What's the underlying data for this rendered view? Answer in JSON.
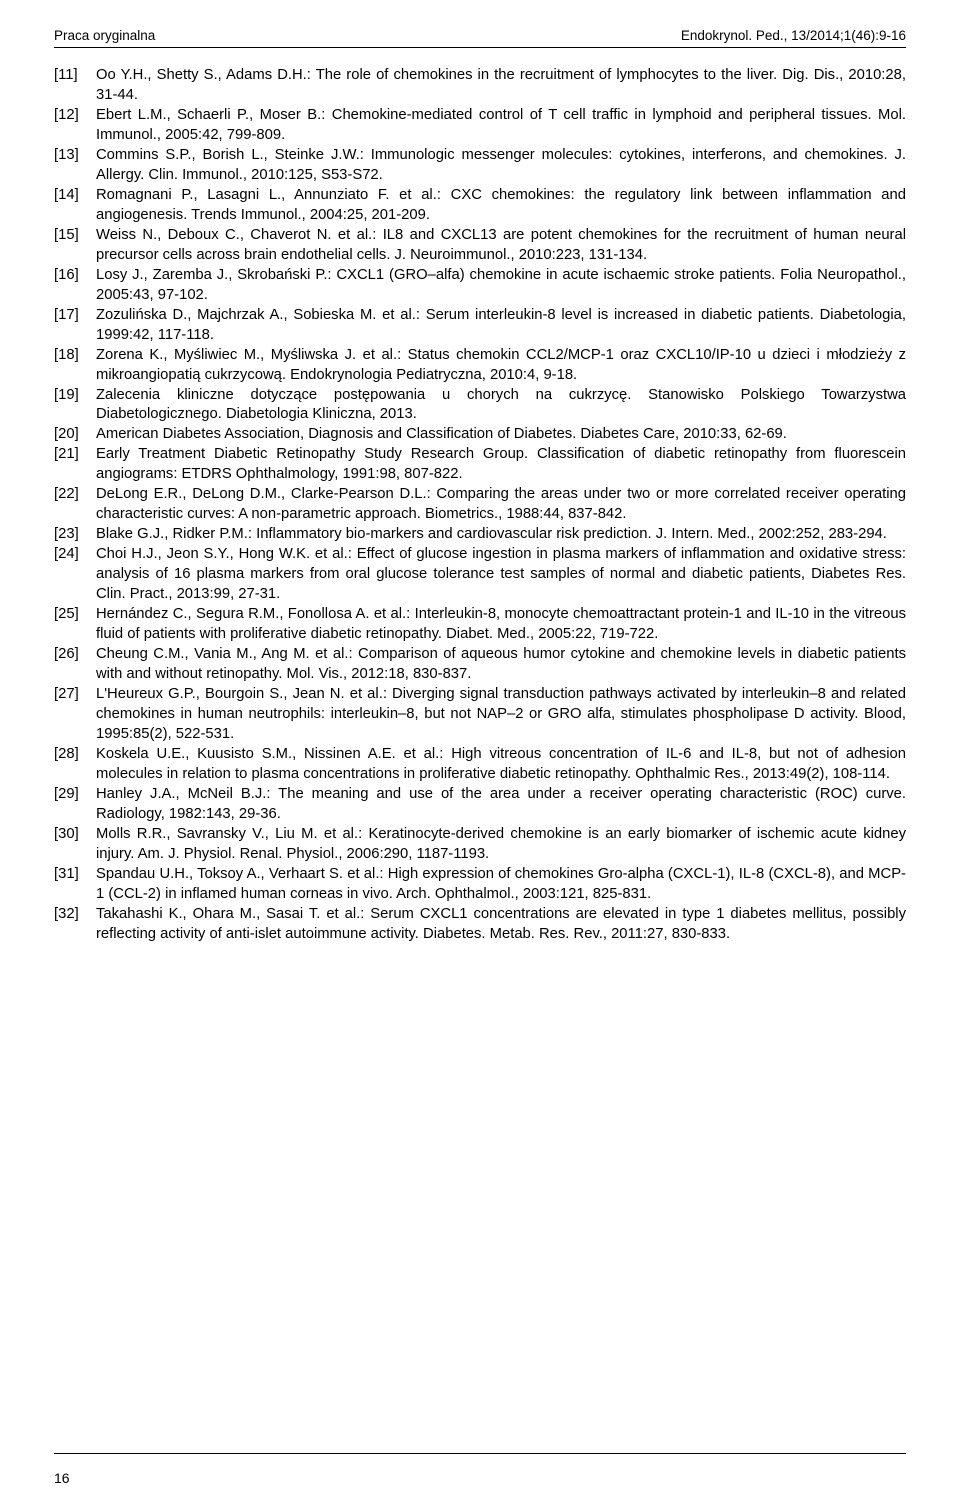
{
  "header": {
    "left": "Praca oryginalna",
    "right": "Endokrynol. Ped., 13/2014;1(46):9-16"
  },
  "pageNumber": "16",
  "references": [
    {
      "num": "[11]",
      "text": "Oo Y.H., Shetty S., Adams D.H.: The role of chemokines in the recruitment of lymphocytes to the liver. Dig. Dis., 2010:28, 31-44."
    },
    {
      "num": "[12]",
      "text": "Ebert L.M., Schaerli P., Moser B.: Chemokine-mediated control of T cell traffic in lymphoid and peripheral tissues. Mol. Immunol., 2005:42, 799-809."
    },
    {
      "num": "[13]",
      "text": "Commins S.P., Borish L., Steinke J.W.: Immunologic messenger molecules: cytokines, interferons, and chemokines. J. Allergy. Clin. Immunol., 2010:125, S53-S72."
    },
    {
      "num": "[14]",
      "text": "Romagnani P., Lasagni L., Annunziato F. et al.: CXC chemokines: the regulatory link between inflammation and angiogenesis. Trends Immunol., 2004:25, 201-209."
    },
    {
      "num": "[15]",
      "text": "Weiss N., Deboux C., Chaverot N. et al.: IL8 and CXCL13 are potent chemokines for the recruitment of human neural precursor cells across brain endothelial cells. J. Neuroimmunol., 2010:223, 131-134."
    },
    {
      "num": "[16]",
      "text": "Losy J., Zaremba J., Skrobański P.: CXCL1 (GRO–alfa) chemokine in acute ischaemic stroke patients. Folia Neuropathol., 2005:43, 97-102."
    },
    {
      "num": "[17]",
      "text": "Zozulińska D., Majchrzak A., Sobieska M. et al.: Serum interleukin-8 level is increased in diabetic patients. Diabetologia, 1999:42, 117-118."
    },
    {
      "num": "[18]",
      "text": "Zorena K., Myśliwiec M., Myśliwska J. et al.: Status chemokin CCL2/MCP-1 oraz CXCL10/IP-10 u dzieci i młodzieży z mikroangiopatią cukrzycową. Endokrynologia Pediatryczna, 2010:4, 9-18."
    },
    {
      "num": "[19]",
      "text": "Zalecenia kliniczne dotyczące postępowania u chorych na cukrzycę. Stanowisko Polskiego Towarzystwa Diabetologicznego. Diabetologia Kliniczna, 2013."
    },
    {
      "num": "[20]",
      "text": "American Diabetes Association, Diagnosis and Classification of Diabetes. Diabetes Care, 2010:33, 62-69."
    },
    {
      "num": "[21]",
      "text": "Early Treatment Diabetic Retinopathy Study Research Group. Classification of diabetic retinopathy from fluorescein angiograms: ETDRS Ophthalmology, 1991:98, 807-822."
    },
    {
      "num": "[22]",
      "text": "DeLong E.R., DeLong D.M., Clarke-Pearson D.L.: Comparing the areas under two or more correlated receiver operating characteristic curves: A non-parametric approach. Biometrics., 1988:44, 837-842."
    },
    {
      "num": "[23]",
      "text": "Blake G.J., Ridker P.M.: Inflammatory bio-markers and cardiovascular risk prediction. J. Intern. Med., 2002:252, 283-294."
    },
    {
      "num": "[24]",
      "text": "Choi H.J., Jeon S.Y., Hong W.K. et al.: Effect of glucose ingestion in plasma markers of inflammation and oxidative stress: analysis of 16 plasma markers from oral glucose tolerance test samples of normal and diabetic patients, Diabetes Res. Clin. Pract., 2013:99, 27-31."
    },
    {
      "num": "[25]",
      "text": "Hernández C., Segura R.M., Fonollosa A. et al.: Interleukin-8, monocyte chemoattractant protein-1 and IL-10 in the vitreous fluid of patients with proliferative diabetic retinopathy. Diabet. Med., 2005:22, 719-722."
    },
    {
      "num": "[26]",
      "text": "Cheung C.M., Vania M., Ang M. et al.: Comparison of aqueous humor cytokine and chemokine levels in diabetic patients with and without retinopathy. Mol. Vis., 2012:18, 830-837."
    },
    {
      "num": "[27]",
      "text": "L'Heureux G.P., Bourgoin S., Jean N. et al.: Diverging signal transduction pathways activated by interleukin–8 and related chemokines in human neutrophils: interleukin–8, but not NAP–2 or GRO alfa, stimulates phospholipase D activity. Blood, 1995:85(2), 522-531."
    },
    {
      "num": "[28]",
      "text": "Koskela U.E., Kuusisto S.M., Nissinen A.E. et al.: High vitreous concentration of IL-6 and IL-8, but not of adhesion molecules in relation to plasma concentrations in proliferative diabetic retinopathy. Ophthalmic Res., 2013:49(2), 108-114."
    },
    {
      "num": "[29]",
      "text": "Hanley J.A., McNeil B.J.: The meaning and use of the area under a receiver operating characteristic (ROC) curve. Radiology, 1982:143, 29-36."
    },
    {
      "num": "[30]",
      "text": "Molls R.R., Savransky V., Liu M. et al.: Keratinocyte-derived chemokine is an early biomarker of ischemic acute kidney injury. Am. J. Physiol. Renal. Physiol., 2006:290, 1187-1193."
    },
    {
      "num": "[31]",
      "text": "Spandau U.H., Toksoy A., Verhaart S. et al.: High expression of chemokines Gro-alpha (CXCL-1), IL-8 (CXCL-8), and MCP-1 (CCL-2) in inflamed human corneas in vivo. Arch. Ophthalmol., 2003:121, 825-831."
    },
    {
      "num": "[32]",
      "text": "Takahashi K., Ohara M., Sasai T. et al.: Serum CXCL1 concentrations are elevated in type 1 diabetes mellitus, possibly reflecting activity of anti-islet autoimmune activity. Diabetes. Metab. Res. Rev., 2011:27, 830-833."
    }
  ]
}
